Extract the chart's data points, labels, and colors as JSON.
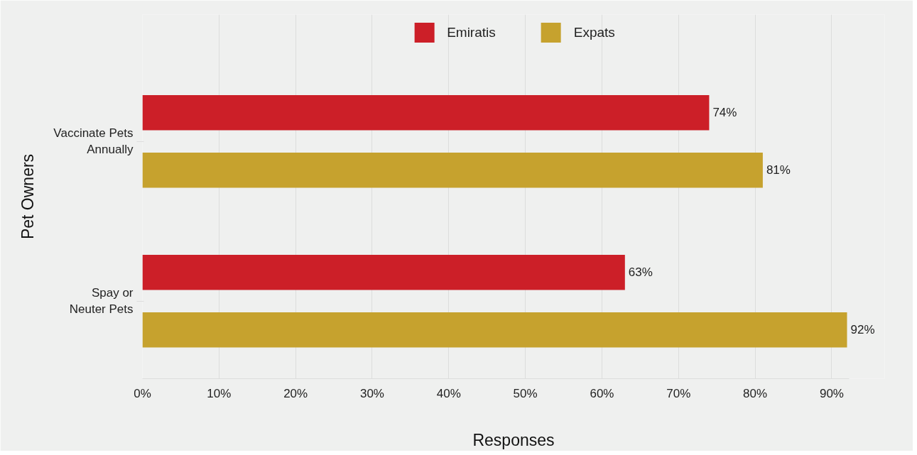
{
  "chart_data": {
    "type": "bar",
    "orientation": "horizontal",
    "xlabel": "Responses",
    "ylabel": "Pet Owners",
    "categories": [
      "Vaccinate Pets Annually",
      "Spay or Neuter Pets"
    ],
    "series": [
      {
        "name": "Emiratis",
        "color": "#cc1f28",
        "values": [
          74,
          63
        ],
        "value_labels": [
          "74%",
          "63%"
        ]
      },
      {
        "name": "Expats",
        "color": "#c6a22e",
        "values": [
          81,
          92
        ],
        "value_labels": [
          "81%",
          "92%"
        ]
      }
    ],
    "xlim": [
      0,
      92.3
    ],
    "xticks": [
      {
        "value": 0,
        "label": "0%"
      },
      {
        "value": 10,
        "label": "10%"
      },
      {
        "value": 20,
        "label": "20%"
      },
      {
        "value": 30,
        "label": "30%"
      },
      {
        "value": 40,
        "label": "40%"
      },
      {
        "value": 50,
        "label": "50%"
      },
      {
        "value": 60,
        "label": "60%"
      },
      {
        "value": 70,
        "label": "70%"
      },
      {
        "value": 80,
        "label": "80%"
      },
      {
        "value": 90,
        "label": "90%"
      }
    ],
    "grid": "x",
    "legend": "top"
  }
}
